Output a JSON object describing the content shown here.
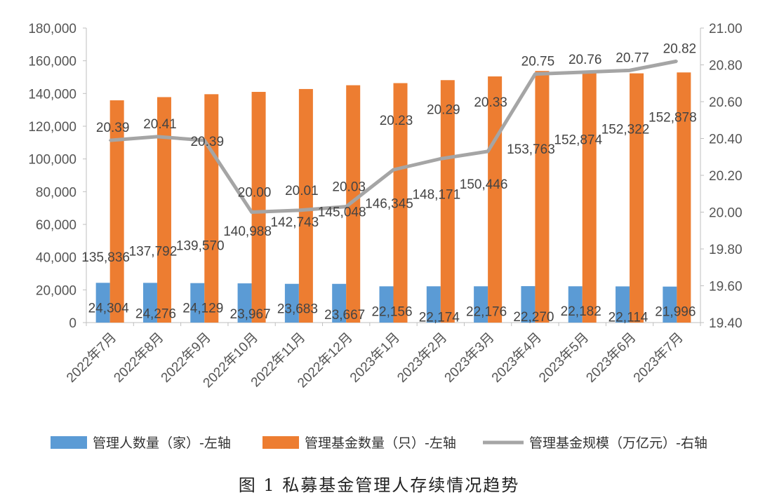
{
  "chart_data": {
    "type": "bar",
    "categories": [
      "2022年7月",
      "2022年8月",
      "2022年9月",
      "2022年10月",
      "2022年11月",
      "2022年12月",
      "2023年1月",
      "2023年2月",
      "2023年3月",
      "2023年4月",
      "2023年5月",
      "2023年6月",
      "2023年7月"
    ],
    "series": [
      {
        "name": "管理人数量（家）-左轴",
        "type": "bar",
        "axis": "left",
        "color": "#5b9bd5",
        "values": [
          24304,
          24276,
          24129,
          23967,
          23683,
          23667,
          22156,
          22174,
          22176,
          22270,
          22182,
          22114,
          21996
        ],
        "labels": [
          "24,304",
          "24,276",
          "24,129",
          "23,967",
          "23,683",
          "23,667",
          "22,156",
          "22,174",
          "22,176",
          "22,270",
          "22,182",
          "22,114",
          "21,996"
        ]
      },
      {
        "name": "管理基金数量（只）-左轴",
        "type": "bar",
        "axis": "left",
        "color": "#ed7d31",
        "values": [
          135836,
          137792,
          139570,
          140988,
          142743,
          145048,
          146345,
          148171,
          150446,
          153763,
          152874,
          152322,
          152878
        ],
        "labels": [
          "135,836",
          "137,792",
          "139,570",
          "140,988",
          "142,743",
          "145,048",
          "146,345",
          "148,171",
          "150,446",
          "153,763",
          "152,874",
          "152,322",
          "152,878"
        ]
      },
      {
        "name": "管理基金规模（万亿元）-右轴",
        "type": "line",
        "axis": "right",
        "color": "#a5a5a5",
        "values": [
          20.39,
          20.41,
          20.39,
          20.0,
          20.01,
          20.03,
          20.23,
          20.29,
          20.33,
          20.75,
          20.76,
          20.77,
          20.82
        ],
        "labels": [
          "20.39",
          "20.41",
          "20.39",
          "20.00",
          "20.01",
          "20.03",
          "20.23",
          "20.29",
          "20.33",
          "20.75",
          "20.76",
          "20.77",
          "20.82"
        ]
      }
    ],
    "ylim_left": [
      0,
      180000
    ],
    "ylim_right": [
      19.4,
      21.0
    ],
    "left_ticks": [
      "0",
      "20,000",
      "40,000",
      "60,000",
      "80,000",
      "100,000",
      "120,000",
      "140,000",
      "160,000",
      "180,000"
    ],
    "right_ticks": [
      "19.40",
      "19.60",
      "19.80",
      "20.00",
      "20.20",
      "20.40",
      "20.60",
      "20.80",
      "21.00"
    ],
    "legend_position": "bottom",
    "grid": false,
    "caption": "图 1  私募基金管理人存续情况趋势"
  }
}
